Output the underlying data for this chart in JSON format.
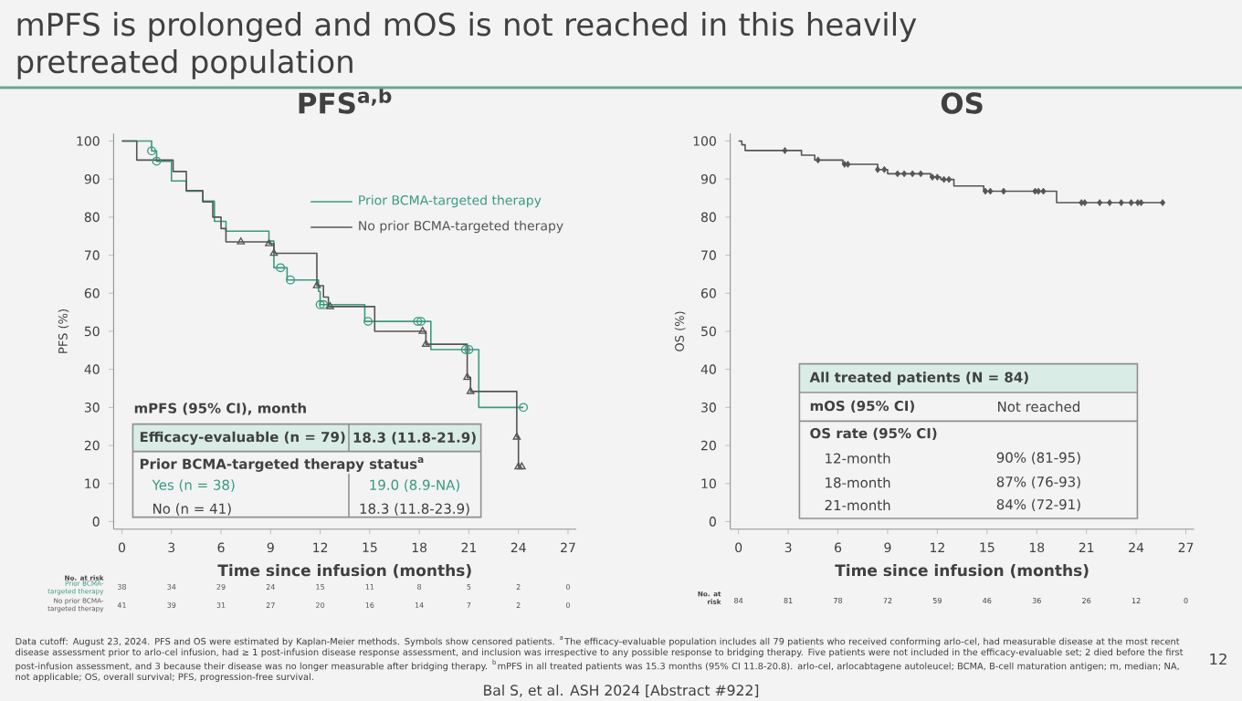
{
  "chart_data": [
    {
      "type": "step",
      "title": "PFS$^{a,b}$",
      "xlabel": "Time since infusion (months)",
      "ylabel": "PFS (%)",
      "xlim": [
        -0.5,
        27.5
      ],
      "ylim": [
        -2,
        102
      ],
      "xticks": [
        0,
        3,
        6,
        9,
        12,
        15,
        18,
        21,
        24,
        27
      ],
      "yticks": [
        0,
        10,
        20,
        30,
        40,
        50,
        60,
        70,
        80,
        90,
        100
      ],
      "legend": "top right",
      "series": [
        {
          "name": "Prior BCMA-targeted therapy",
          "color": "#3a9a80",
          "x": [
            0,
            1.8,
            2.1,
            3.0,
            3.9,
            4.9,
            5.6,
            6.3,
            8.9,
            9.2,
            10.0,
            11.9,
            12.0,
            14.7,
            18.7,
            21.6,
            24.3
          ],
          "values": [
            100,
            97.4,
            94.7,
            89.5,
            86.8,
            84.2,
            78.9,
            76.3,
            73.7,
            66.7,
            63.5,
            60.5,
            57.0,
            52.6,
            45.2,
            30.0,
            30.0
          ]
        },
        {
          "name": "No prior BCMA-targeted therapy",
          "color": "#555555",
          "x": [
            0,
            0.9,
            3.1,
            3.9,
            4.9,
            5.5,
            6.0,
            6.3,
            8.9,
            9.2,
            11.8,
            12.2,
            12.5,
            15.3,
            18.4,
            20.9,
            21.1,
            23.9,
            24.0,
            24.2
          ],
          "values": [
            100,
            95,
            92,
            87,
            84,
            80,
            77,
            73.5,
            73,
            70.5,
            62,
            59,
            56.5,
            50,
            46.6,
            37.9,
            34.2,
            22.2,
            14.4,
            14.4
          ]
        },
        {
          "type": "scatter",
          "color": "#3a9a80",
          "marker": "circle",
          "x": [
            1.8,
            2.1,
            9.6,
            10.2,
            12.0,
            12.2,
            14.9,
            17.9,
            18.1,
            20.8,
            21.0,
            24.3
          ],
          "values": [
            97.4,
            94.7,
            66.7,
            63.5,
            57.0,
            57.0,
            52.6,
            52.6,
            52.6,
            45.2,
            45.2,
            30.0
          ]
        },
        {
          "type": "scatter",
          "color": "#555555",
          "marker": "triangle",
          "x": [
            7.2,
            8.9,
            9.2,
            11.8,
            12.6,
            18.2,
            18.4,
            20.9,
            21.1,
            23.9,
            24.0,
            24.2
          ],
          "values": [
            73.5,
            73,
            70.5,
            62,
            56.5,
            50,
            46.6,
            37.9,
            34.2,
            22.2,
            14.4,
            14.4
          ]
        }
      ],
      "annotations": [
        "mPFS (95% CI), month",
        "Efficacy-evaluable (n = 79)",
        "18.3 (11.8-21.9)",
        "Prior BCMA-targeted therapy status$^{a}$",
        "Yes (n = 38)",
        "19.0 (8.9-NA)",
        "No (n = 41)",
        "18.3 (11.8-23.9)",
        "No. at risk",
        "Prior BCMA-targeted therapy",
        "No prior BCMA-targeted therapy",
        "38",
        "34",
        "29",
        "24",
        "15",
        "11",
        "8",
        "5",
        "2",
        "0",
        "41",
        "39",
        "31",
        "27",
        "20",
        "16",
        "14",
        "7",
        "2",
        "0",
        "mPFS is prolonged and mOS is not reached in this heavily pretreated population",
        "Data cutoff: August 23, 2024. PFS and OS were estimated by Kaplan-Meier methods. Symbols show censored patients. $^{a}$The efficacy-evaluable population includes all 79 patients who received conforming arlo-cel, had measurable disease at the most recent disease assessment prior to arlo-cel infusion, had ≥ 1 post-infusion disease response assessment, and inclusion was irrespective to any possible response to bridging therapy. Five patients were not included in the efficacy-evaluable set; 2 died before the first post-infusion assessment, and 3 because their disease was no longer measurable after bridging therapy. $^{b}$mPFS in all treated patients was 15.3 months (95% CI 11.8-20.8). arlo-cel, arlocabtagene autoleucel; BCMA, B-cell maturation antigen; m, median; NA, not applicable; OS, overall survival; PFS, progression-free survival.",
        "Bal S, et al. ASH 2024 [Abstract #922]",
        "12"
      ]
    },
    {
      "type": "step",
      "title": "OS",
      "xlabel": "Time since infusion (months)",
      "ylabel": "OS (%)",
      "xlim": [
        -0.5,
        27.5
      ],
      "ylim": [
        -2,
        102
      ],
      "xticks": [
        0,
        3,
        6,
        9,
        12,
        15,
        18,
        21,
        24,
        27
      ],
      "yticks": [
        0,
        10,
        20,
        30,
        40,
        50,
        60,
        70,
        80,
        90,
        100
      ],
      "series": [
        {
          "color": "#555555",
          "x": [
            0,
            0.2,
            0.4,
            3.8,
            4.6,
            6.3,
            8.4,
            9.0,
            11.6,
            12.2,
            13.0,
            14.8,
            19.2,
            25.6
          ],
          "values": [
            100,
            99,
            97.5,
            96.3,
            95,
            93.9,
            92.5,
            91.4,
            90.5,
            89.9,
            88.2,
            86.8,
            83.8,
            83.8
          ]
        },
        {
          "type": "scatter",
          "color": "#555555",
          "marker": "diamond",
          "x": [
            2.8,
            4.8,
            6.4,
            6.6,
            8.4,
            8.8,
            9.6,
            10.0,
            10.5,
            11.0,
            11.7,
            12.0,
            12.4,
            12.7,
            14.9,
            15.2,
            16.0,
            17.9,
            18.1,
            18.4,
            20.7,
            20.9,
            21.8,
            22.4,
            23.1,
            23.7,
            24.1,
            24.3,
            25.6
          ],
          "values": [
            97.5,
            95,
            93.9,
            93.9,
            92.5,
            92.5,
            91.4,
            91.4,
            91.4,
            91.4,
            90.5,
            90.5,
            89.9,
            89.9,
            86.8,
            86.8,
            86.8,
            86.8,
            86.8,
            86.8,
            83.8,
            83.8,
            83.8,
            83.8,
            83.8,
            83.8,
            83.8,
            83.8,
            83.8
          ]
        }
      ],
      "annotations": [
        "All treated patients (N = 84)",
        "mOS (95% CI)",
        "Not reached",
        "OS rate (95% CI)",
        "12-month",
        "90% (81-95)",
        "18-month",
        "87% (76-93)",
        "21-month",
        "84% (72-91)",
        "No. at risk",
        "84",
        "81",
        "78",
        "72",
        "59",
        "46",
        "36",
        "26",
        "12",
        "0"
      ]
    }
  ]
}
